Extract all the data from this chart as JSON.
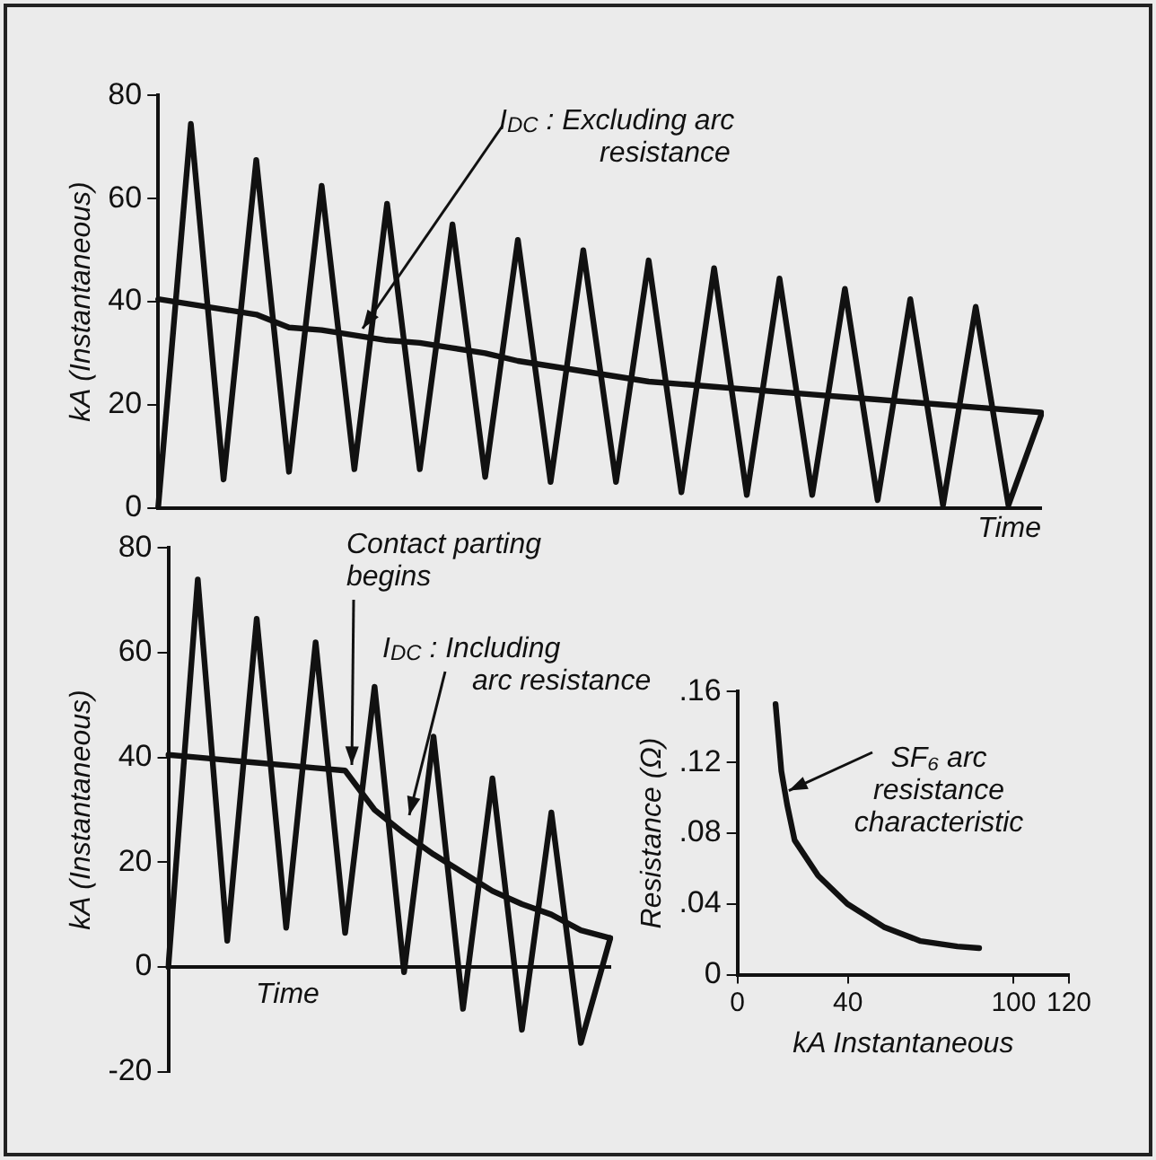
{
  "chart_data": [
    {
      "type": "line",
      "categories": [
        null,
        null,
        null,
        null,
        null,
        null,
        null,
        null,
        null,
        null,
        null,
        null,
        null,
        null,
        null,
        null,
        null,
        null,
        null,
        null,
        null,
        null,
        null,
        null,
        null,
        null,
        null,
        null
      ],
      "series": [
        {
          "color": "#111111",
          "values": [
            0,
            74.5,
            5.5,
            67.5,
            7,
            62.5,
            7.5,
            59,
            7.5,
            55,
            6,
            52,
            5,
            50,
            5,
            48,
            3,
            46.5,
            2.5,
            44.5,
            2.5,
            42.5,
            1.5,
            40.5,
            0.5,
            39,
            0.5,
            18
          ]
        },
        {
          "color": "#111111",
          "values": [
            40.5,
            39.5,
            38.5,
            37.5,
            35,
            34.5,
            33.5,
            32.5,
            32,
            31,
            30,
            28.5,
            27.5,
            26.5,
            25.5,
            24.5,
            24,
            23.5,
            23,
            22.5,
            22,
            21.5,
            21,
            20.5,
            20,
            19.5,
            19,
            18.5
          ]
        }
      ],
      "ylim": [
        0,
        80
      ],
      "yticks": [
        0,
        20,
        40,
        60,
        80
      ],
      "ylabel": "kA (Instantaneous)",
      "xlabel": "Time",
      "tick_labels": "y",
      "marker": "none",
      "annotations": [
        "I$_{DC}$ : Excluding arc resistance"
      ]
    },
    {
      "type": "line",
      "categories": [
        null,
        null,
        null,
        null,
        null,
        null,
        null,
        null,
        null,
        null,
        null,
        null,
        null,
        null,
        null,
        null
      ],
      "series": [
        {
          "color": "#111111",
          "values": [
            0,
            74,
            5,
            66.5,
            7.5,
            62,
            6.5,
            53.5,
            -1,
            44,
            -8,
            36,
            -12,
            29.5,
            -14.5,
            5.5
          ]
        },
        {
          "color": "#111111",
          "values": [
            40.5,
            40,
            39.5,
            39,
            38.5,
            38,
            37.5,
            30,
            25.5,
            21.5,
            18,
            14.5,
            12,
            10,
            7,
            5.5
          ]
        }
      ],
      "ylim": [
        -20,
        80
      ],
      "yticks": [
        -20,
        0,
        20,
        40,
        60,
        80
      ],
      "ylabel": "kA (Instantaneous)",
      "xlabel": "Time",
      "tick_labels": "y",
      "marker": "none",
      "annotations": [
        "Contact parting begins",
        "I$_{DC}$ : Including arc resistance"
      ]
    },
    {
      "type": "line",
      "x": [
        13.8,
        15.9,
        18,
        20.7,
        29.2,
        39.8,
        53,
        66.3,
        79.6,
        87.5
      ],
      "series": [
        {
          "color": "#111111",
          "values": [
            0.153,
            0.115,
            0.096,
            0.076,
            0.056,
            0.04,
            0.027,
            0.019,
            0.016,
            0.015
          ]
        }
      ],
      "xlim": [
        0,
        120
      ],
      "xticks": [
        0,
        40,
        100,
        120
      ],
      "ylim": [
        0,
        0.16
      ],
      "yticks": [
        {
          "value": 0,
          "label": "0"
        },
        {
          "value": 0.04,
          "label": ".04"
        },
        {
          "value": 0.08,
          "label": ".08"
        },
        {
          "value": 0.12,
          "label": ".12"
        },
        {
          "value": 0.16,
          "label": ".16"
        }
      ],
      "ylabel": "Resistance (Ω)",
      "xlabel": "kA Instantaneous",
      "marker": "none",
      "annotations": [
        {
          "text": "SF₆ arc resistance characteristic",
          "x": 16,
          "y": 0.1
        }
      ]
    }
  ]
}
